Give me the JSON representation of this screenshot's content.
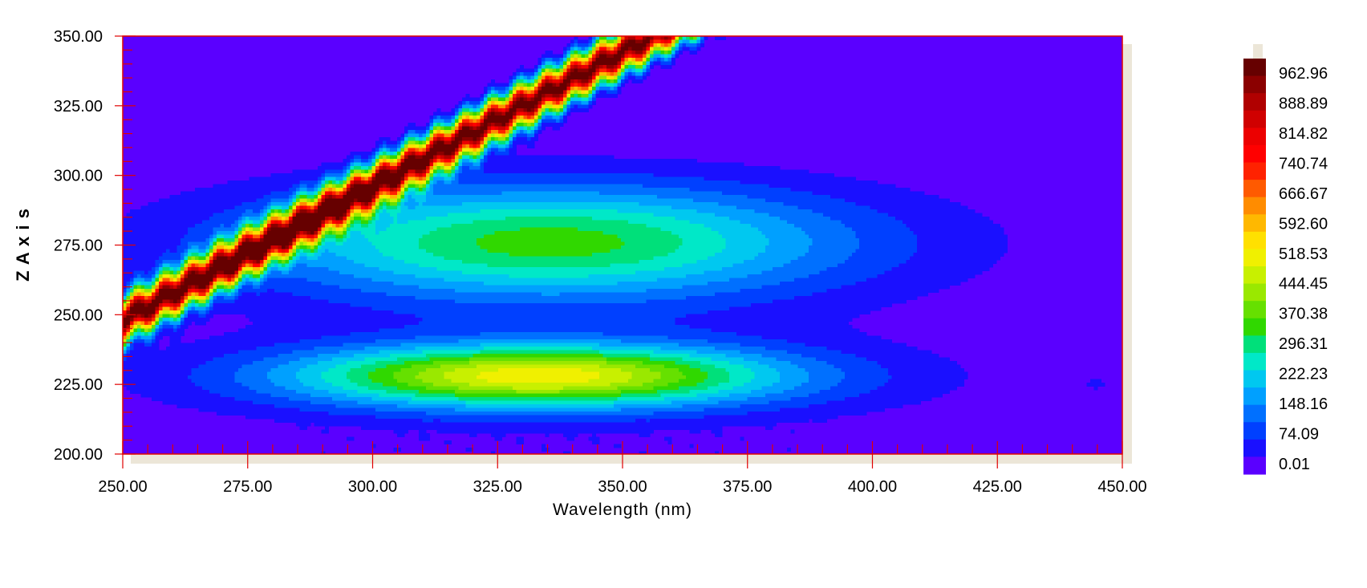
{
  "chart_data": {
    "type": "heatmap",
    "subtype": "filled-contour",
    "xlabel": "Wavelength (nm)",
    "ylabel": "Z  A x i s",
    "xlim": [
      250,
      450
    ],
    "ylim": [
      200,
      350
    ],
    "x_ticks": [
      "250.00",
      "275.00",
      "300.00",
      "325.00",
      "350.00",
      "375.00",
      "400.00",
      "425.00",
      "450.00"
    ],
    "y_ticks": [
      "200.00",
      "225.00",
      "250.00",
      "275.00",
      "300.00",
      "325.00",
      "350.00"
    ],
    "colorbar": {
      "labels": [
        "962.96",
        "888.89",
        "814.82",
        "740.74",
        "666.67",
        "592.60",
        "518.53",
        "444.45",
        "370.38",
        "296.31",
        "222.23",
        "148.16",
        "74.09",
        "0.01"
      ],
      "colors": [
        "#660000",
        "#8b0000",
        "#b00000",
        "#d00000",
        "#ec0000",
        "#ff0000",
        "#ff2200",
        "#ff5a00",
        "#ff8c00",
        "#ffb800",
        "#ffe000",
        "#f0f000",
        "#c8f000",
        "#9ae800",
        "#66e000",
        "#30d800",
        "#00e07a",
        "#00e8c8",
        "#00c8f0",
        "#00a0ff",
        "#0070ff",
        "#0040ff",
        "#1a10ff",
        "#5a00ff"
      ],
      "min": 0.01,
      "max": 1000
    },
    "features": [
      {
        "name": "scatter band",
        "x_start": 250,
        "y_start": 248,
        "x_end": 356,
        "y_end": 350,
        "peak": 1000
      },
      {
        "name": "upper peak",
        "x": 335,
        "y": 276,
        "peak": 300
      },
      {
        "name": "lower peak",
        "x": 333,
        "y": 228,
        "peak": 460
      }
    ]
  }
}
